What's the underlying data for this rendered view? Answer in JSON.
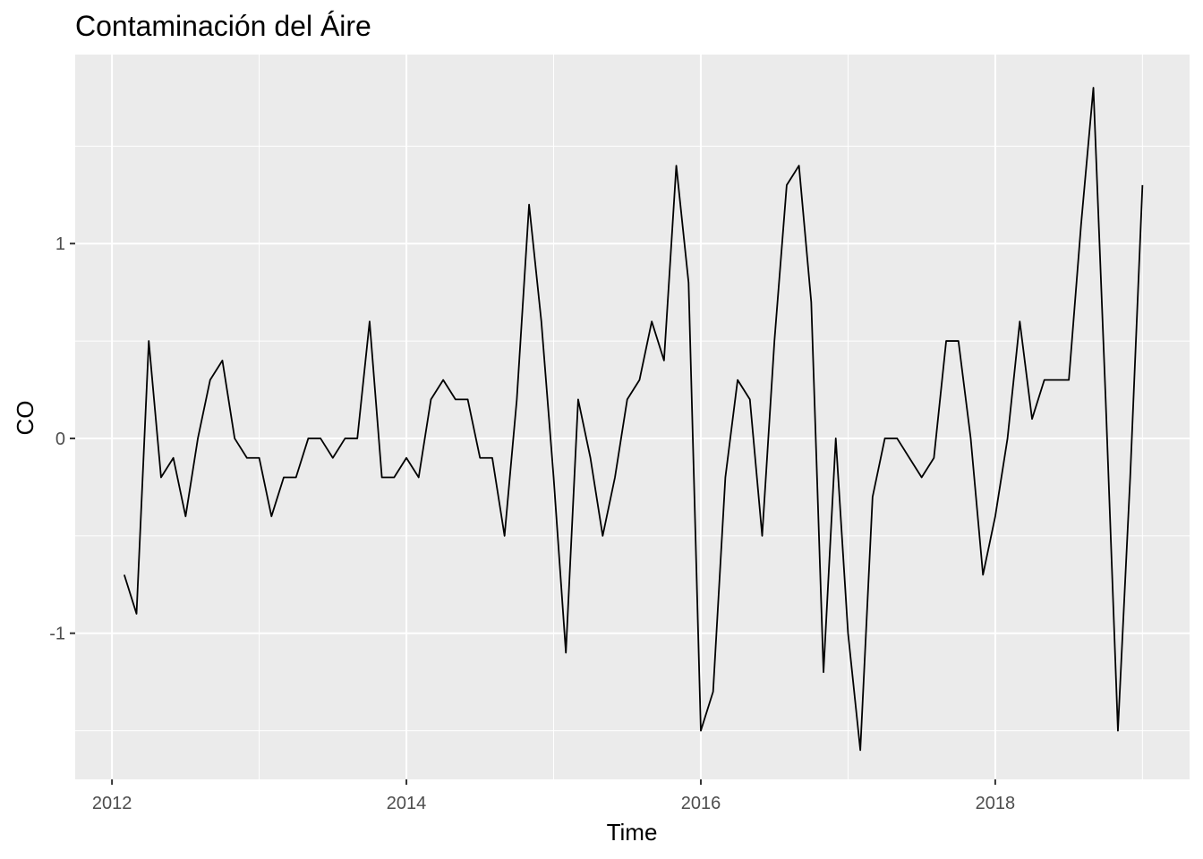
{
  "chart_data": {
    "type": "line",
    "title": "Contaminación del Áire",
    "xlabel": "Time",
    "ylabel": "CO",
    "xlim": [
      2011.75,
      2019.32
    ],
    "ylim": [
      -1.75,
      1.97
    ],
    "x_ticks": [
      2012,
      2014,
      2016,
      2018
    ],
    "x_tick_labels": [
      "2012",
      "2014",
      "2016",
      "2018"
    ],
    "y_ticks": [
      -1,
      0,
      1
    ],
    "y_tick_labels": [
      "-1",
      "0",
      "1"
    ],
    "grid": true,
    "panel_background": "#ebebeb",
    "grid_color": "#ffffff",
    "line_color": "#000000",
    "series": [
      {
        "start": 2012.0833,
        "frequency": 12,
        "values": [
          -0.7,
          -0.9,
          0.5,
          -0.2,
          -0.1,
          -0.4,
          0.0,
          0.3,
          0.4,
          0.0,
          -0.1,
          -0.1,
          -0.4,
          -0.2,
          -0.2,
          0.0,
          0.0,
          -0.1,
          0.0,
          0.0,
          0.6,
          -0.2,
          -0.2,
          -0.1,
          -0.2,
          0.2,
          0.3,
          0.2,
          0.2,
          -0.1,
          -0.1,
          -0.5,
          0.2,
          1.2,
          0.6,
          -0.2,
          -1.1,
          0.2,
          -0.1,
          -0.5,
          -0.2,
          0.2,
          0.3,
          0.6,
          0.4,
          1.4,
          0.8,
          -1.5,
          -1.3,
          -0.2,
          0.3,
          0.2,
          -0.5,
          0.5,
          1.3,
          1.4,
          0.7,
          -1.2,
          0.0,
          -1.0,
          -1.6,
          -0.3,
          0.0,
          0.0,
          -0.1,
          -0.2,
          -0.1,
          0.5,
          0.5,
          0.0,
          -0.7,
          -0.4,
          0.0,
          0.6,
          0.1,
          0.3,
          0.3,
          0.3,
          1.1,
          1.8,
          0.2,
          -1.5,
          -0.2,
          1.3
        ]
      }
    ]
  }
}
